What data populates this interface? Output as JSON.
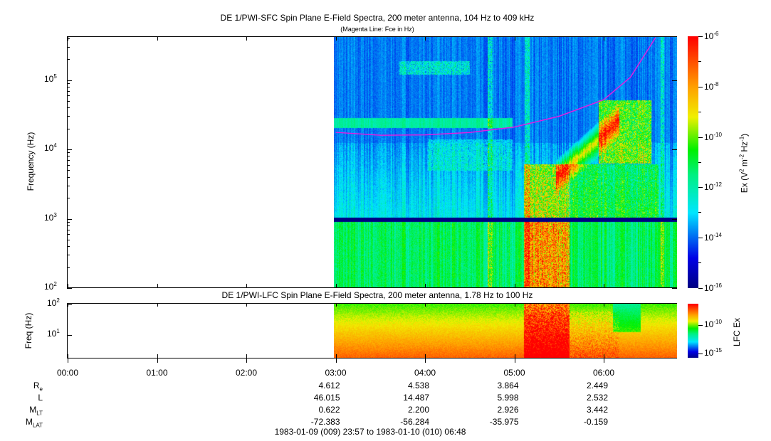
{
  "chart_data": [
    {
      "type": "heatmap",
      "title": "DE 1/PWI-SFC  Spin Plane E-Field Spectra, 200 meter antenna, 104 Hz to 409 kHz",
      "subtitle": "(Magenta Line: Fce in Hz)",
      "ylabel": "Frequency (Hz)",
      "yscale": "log",
      "ylim": [
        100,
        409000
      ],
      "ytick_labels": [
        {
          "base": "10",
          "exp": "2",
          "value": 100
        },
        {
          "base": "10",
          "exp": "3",
          "value": 1000
        },
        {
          "base": "10",
          "exp": "4",
          "value": 10000
        },
        {
          "base": "10",
          "exp": "5",
          "value": 100000
        }
      ],
      "colorbar": {
        "label": "Ex (V² m⁻² Hz⁻¹)",
        "label_parts": {
          "pre": "Ex (V",
          "e1": "2",
          "mid": " m",
          "e2": "-2",
          "mid2": " Hz",
          "e3": "-1",
          "post": ")"
        },
        "scale": "log",
        "range": [
          1e-16,
          1e-06
        ],
        "tick_labels": [
          {
            "base": "10",
            "exp": "-6"
          },
          {
            "base": "10",
            "exp": "-8"
          },
          {
            "base": "10",
            "exp": "-10"
          },
          {
            "base": "10",
            "exp": "-12"
          },
          {
            "base": "10",
            "exp": "-14"
          },
          {
            "base": "10",
            "exp": "-16"
          }
        ]
      },
      "data_start_hour": 3.0,
      "fce_line": {
        "color": "#e020e0",
        "hours": [
          3.0,
          3.5,
          4.0,
          4.5,
          5.0,
          5.5,
          6.0,
          6.3,
          6.58
        ],
        "freq_hz": [
          17600,
          16000,
          16200,
          17500,
          21000,
          30000,
          52000,
          110000,
          409000
        ]
      },
      "data_gap_hz": [
        880,
        1000
      ]
    },
    {
      "type": "heatmap",
      "title": "DE 1/PWI-LFC  Spin Plane E-Field Spectra, 200 meter antenna, 1.78 Hz to 100 Hz",
      "ylabel": "Freq (Hz)",
      "yscale": "log",
      "ylim": [
        1.78,
        100
      ],
      "ytick_labels": [
        {
          "base": "10",
          "exp": "2",
          "value": 100
        },
        {
          "base": "10",
          "exp": "1",
          "value": 10
        }
      ],
      "colorbar": {
        "label": "LFC Ex",
        "scale": "log",
        "tick_labels": [
          {
            "base": "10",
            "exp": "-10"
          },
          {
            "base": "10",
            "exp": "-15"
          }
        ]
      },
      "data_start_hour": 3.0
    }
  ],
  "x_axis": {
    "tick_labels": [
      "00:00",
      "01:00",
      "02:00",
      "03:00",
      "04:00",
      "05:00",
      "06:00"
    ],
    "range_hours": [
      -0.05,
      6.8
    ]
  },
  "orbit": {
    "rows": [
      {
        "label": "R",
        "sub": "e",
        "values": [
          "4.612",
          "4.538",
          "3.864",
          "2.449"
        ]
      },
      {
        "label": "L",
        "sub": "",
        "values": [
          "46.015",
          "14.487",
          "5.998",
          "2.532"
        ]
      },
      {
        "label": "M",
        "sub": "LT",
        "values": [
          "0.622",
          "2.200",
          "2.926",
          "3.442"
        ]
      },
      {
        "label": "M",
        "sub": "LAT",
        "values": [
          "-72.383",
          "-56.284",
          "-35.975",
          "-0.159"
        ]
      }
    ]
  },
  "time_range": "1983-01-09 (009) 23:57 to 1983-01-10 (010) 06:48"
}
